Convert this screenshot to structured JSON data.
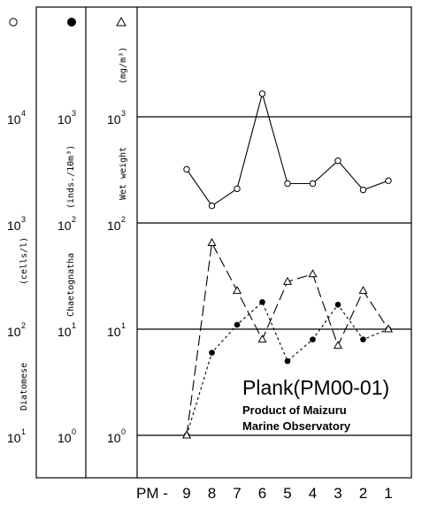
{
  "chart_data": {
    "type": "line",
    "title": "Plank(PM00-01)",
    "subtitle_lines": [
      "Product of Maizuru",
      "Marine Observatory"
    ],
    "x_axis": {
      "prefix": "PM -",
      "categories": [
        "9",
        "8",
        "7",
        "6",
        "5",
        "4",
        "3",
        "2",
        "1"
      ]
    },
    "log_scale": true,
    "axes": [
      {
        "name": "Diatomese",
        "unit": "(cells/l)",
        "marker": "○",
        "tick_labels": [
          {
            "base": "10",
            "exp": "1"
          },
          {
            "base": "10",
            "exp": "2"
          },
          {
            "base": "10",
            "exp": "3"
          },
          {
            "base": "10",
            "exp": "4"
          }
        ]
      },
      {
        "name": "Chaetognatha",
        "unit": "(inds./10m³)",
        "marker": "●",
        "tick_labels": [
          {
            "base": "10",
            "exp": "0"
          },
          {
            "base": "10",
            "exp": "1"
          },
          {
            "base": "10",
            "exp": "2"
          },
          {
            "base": "10",
            "exp": "3"
          }
        ]
      },
      {
        "name": "Wet weight",
        "unit": "(mg/m³)",
        "marker": "△",
        "tick_labels": [
          {
            "base": "10",
            "exp": "0"
          },
          {
            "base": "10",
            "exp": "1"
          },
          {
            "base": "10",
            "exp": "2"
          },
          {
            "base": "10",
            "exp": "3"
          }
        ]
      }
    ],
    "ylim_decades_wet_weight": [
      0,
      3.5
    ],
    "grid": "horizontal lines at each decade",
    "series": [
      {
        "name": "Diatomese",
        "marker": "open-circle",
        "line": "solid",
        "axis": "Diatomese",
        "x": [
          "9",
          "8",
          "7",
          "6",
          "5",
          "4",
          "3",
          "2",
          "1"
        ],
        "values": [
          3200,
          1450,
          2100,
          16500,
          2350,
          2350,
          3850,
          2050,
          2500
        ]
      },
      {
        "name": "Chaetognatha",
        "marker": "filled-circle",
        "line": "dotted",
        "axis": "Chaetognatha",
        "x": [
          "9",
          "8",
          "7",
          "6",
          "5",
          "4",
          "3",
          "2",
          "1"
        ],
        "values": [
          1,
          6,
          11,
          18,
          5,
          8,
          17,
          8,
          10
        ]
      },
      {
        "name": "Wet weight",
        "marker": "open-triangle",
        "line": "long-dash",
        "axis": "Wet weight",
        "x": [
          "9",
          "8",
          "7",
          "6",
          "5",
          "4",
          "3",
          "2",
          "1"
        ],
        "values": [
          1,
          65,
          23,
          8,
          28,
          33,
          7,
          23,
          10
        ]
      }
    ]
  }
}
